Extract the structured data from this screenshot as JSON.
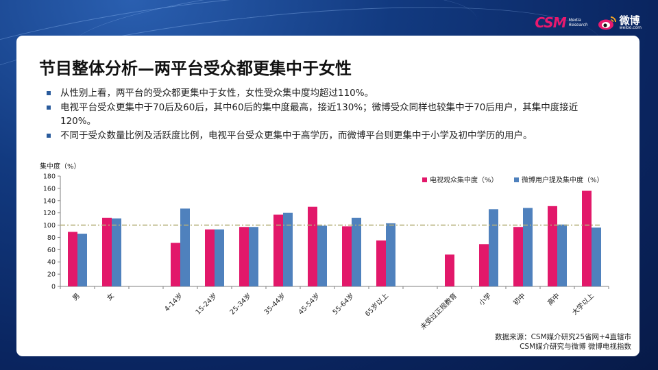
{
  "header": {
    "csm_logo": "CSM",
    "csm_sub": [
      "Media",
      "Research"
    ],
    "weibo_logo": "微博",
    "weibo_url": "weibo.com"
  },
  "slide": {
    "title": "节目整体分析—两平台受众都更集中于女性",
    "bullets": [
      "从性别上看，两平台的受众都更集中于女性，女性受众集中度均超过110%。",
      "电视平台受众更集中于70后及60后，其中60后的集中度最高，接近130%；微博受众同样也较集中于70后用户，其集中度接近120%。",
      "不同于受众数量比例及活跃度比例，电视平台受众更集中于高学历，而微博平台则更集中于小学及初中学历的用户。"
    ],
    "source": [
      "数据来源：CSM媒介研究25省网+4直辖市",
      "CSM媒介研究与微博 微博电视指数"
    ]
  },
  "colors": {
    "tv": "#e2186a",
    "weibo": "#4f81bd",
    "refline": "#b5b07a",
    "bullet": "#2a5b9c"
  },
  "chart_data": {
    "type": "bar",
    "ylabel": "集中度（%）",
    "ylim": [
      0,
      180
    ],
    "yticks": [
      0,
      20,
      40,
      60,
      80,
      100,
      120,
      140,
      160,
      180
    ],
    "reference_line": 100,
    "legend_position": "top-right",
    "categories": [
      "男",
      "女",
      "",
      "4-14岁",
      "15-24岁",
      "25-34岁",
      "35-44岁",
      "45-54岁",
      "55-64岁",
      "65岁以上",
      "",
      "未受过正规教育",
      "小学",
      "初中",
      "高中",
      "大学以上"
    ],
    "series": [
      {
        "name": "电视观众集中度（%）",
        "color": "#e2186a",
        "values": [
          89,
          112,
          null,
          71,
          93,
          97,
          117,
          130,
          98,
          75,
          null,
          52,
          69,
          97,
          131,
          156
        ]
      },
      {
        "name": "微博用户提及集中度（%）",
        "color": "#4f81bd",
        "values": [
          86,
          111,
          null,
          127,
          93,
          97,
          120,
          99,
          112,
          103,
          null,
          null,
          126,
          128,
          101,
          96
        ]
      }
    ]
  }
}
